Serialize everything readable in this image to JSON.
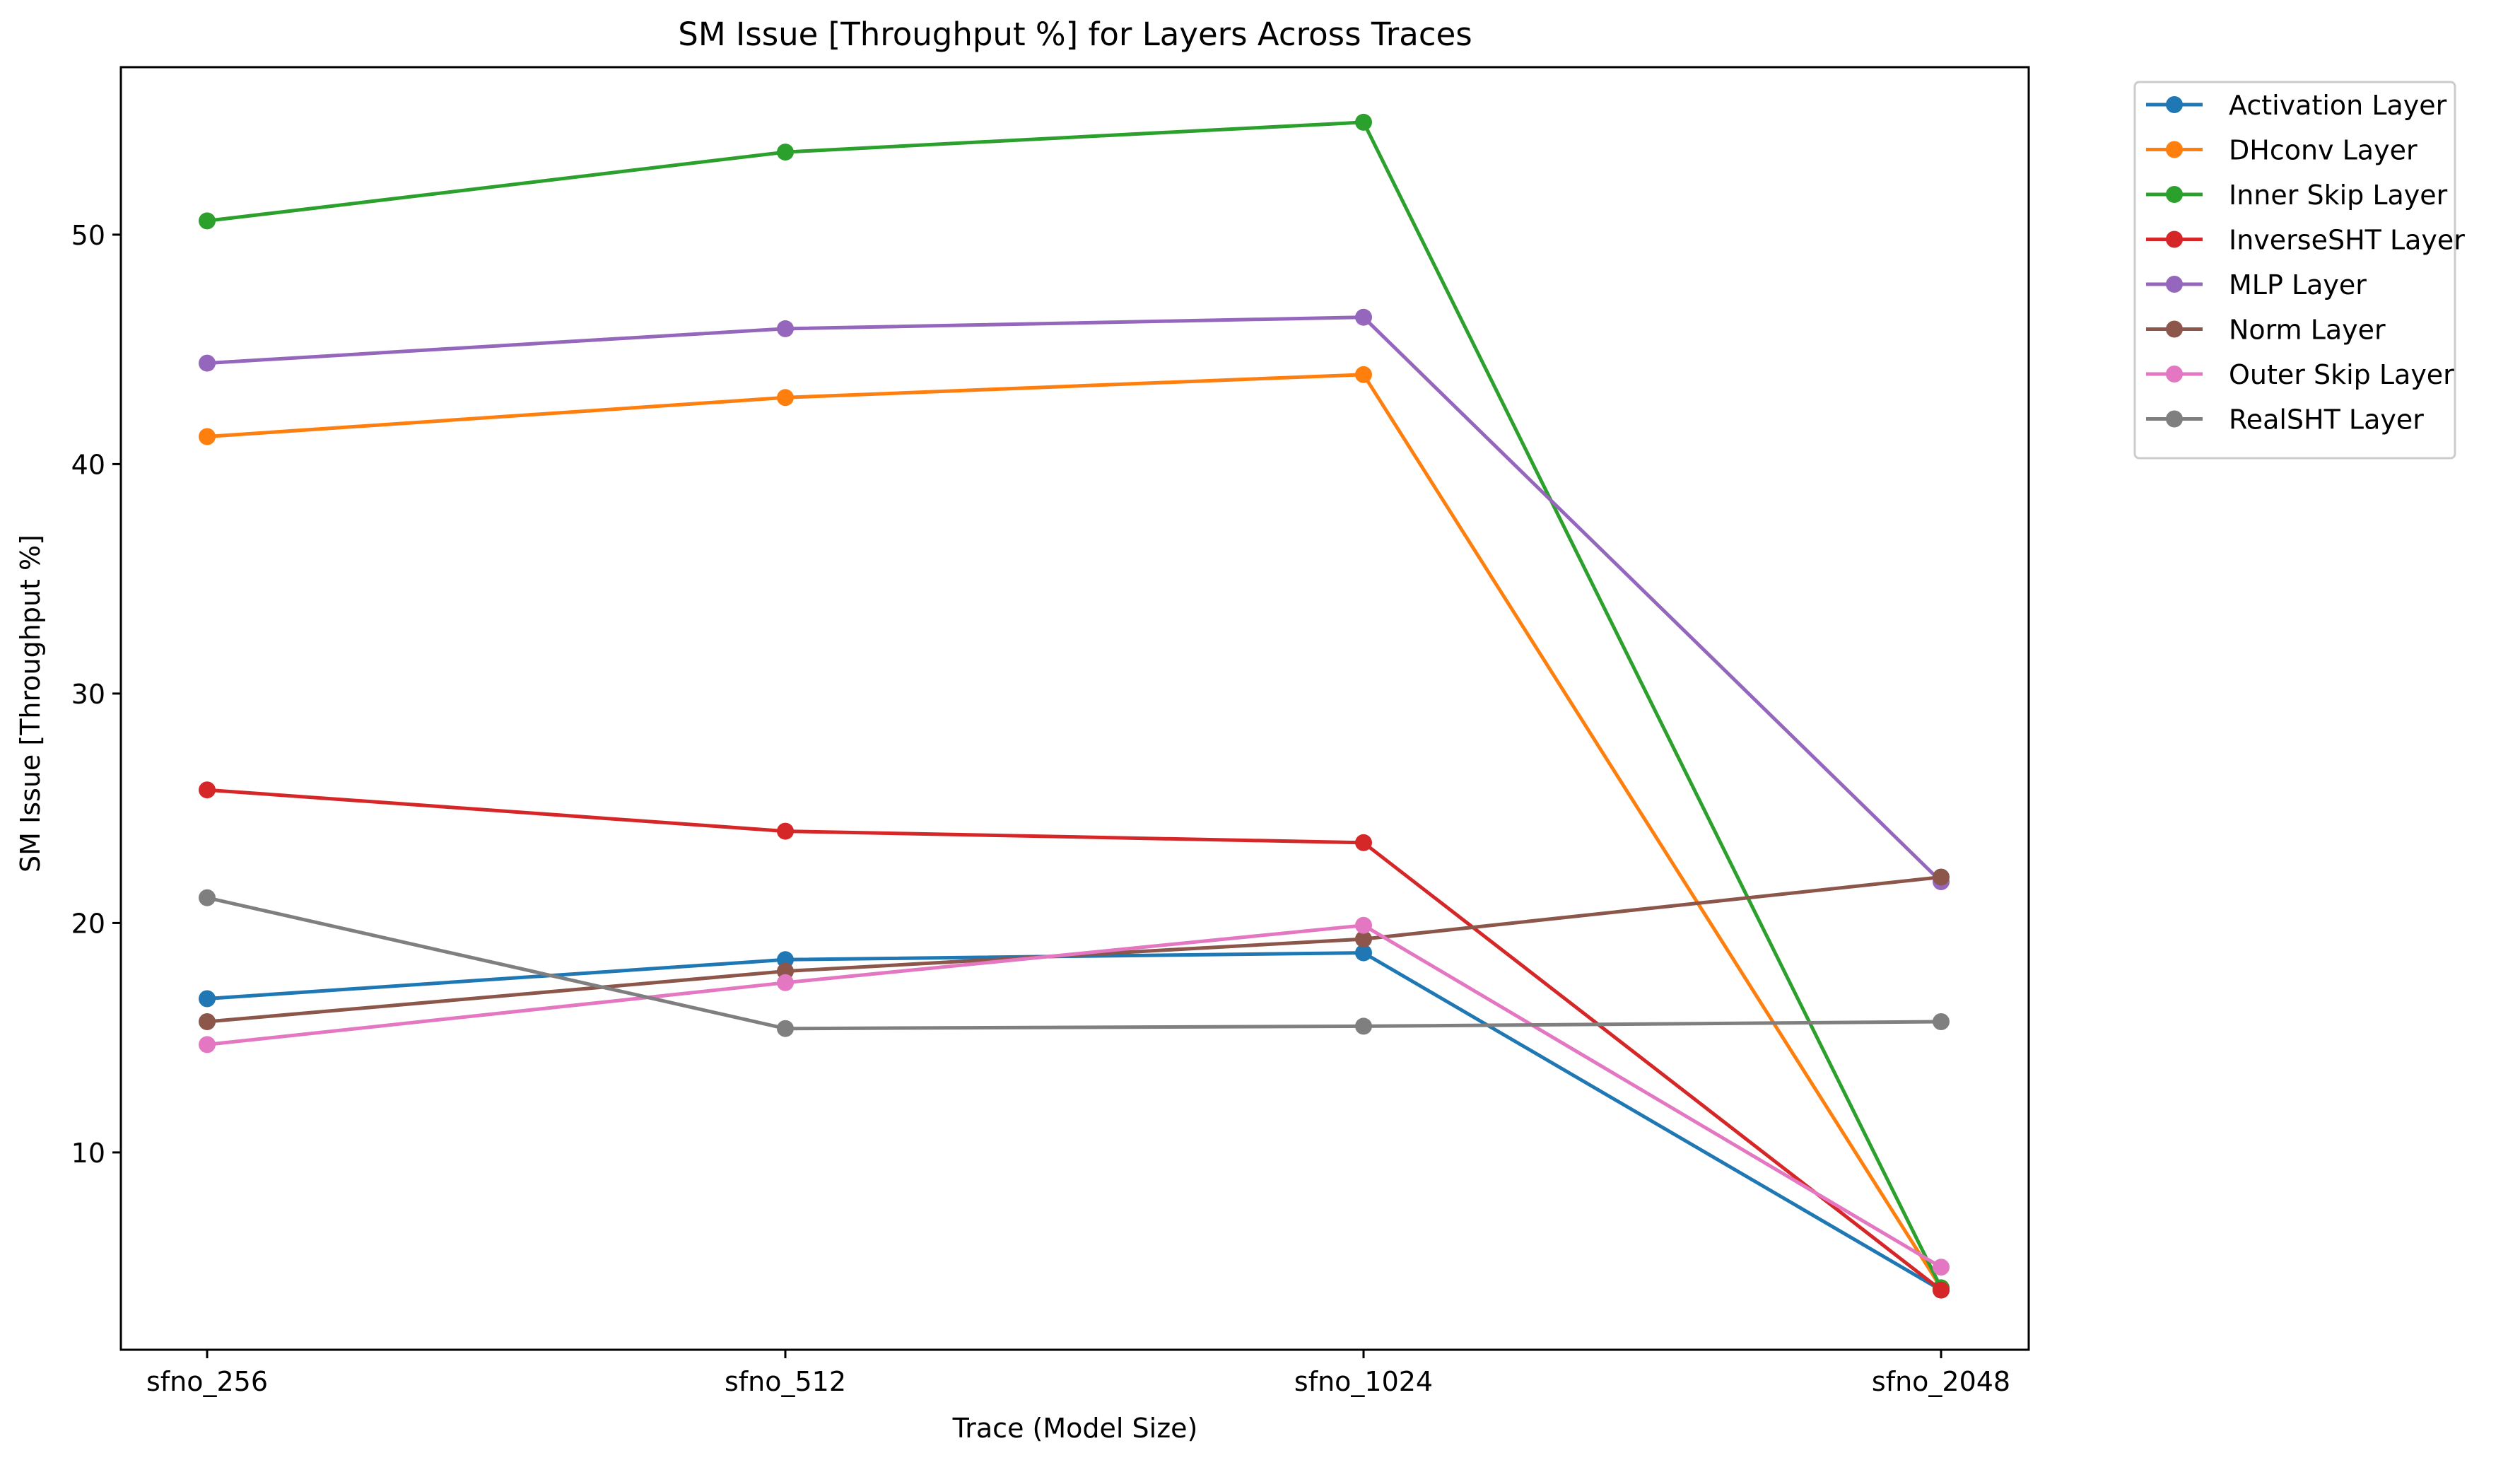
{
  "chart_data": {
    "type": "line",
    "title": "SM Issue [Throughput %] for Layers Across Traces",
    "xlabel": "Trace (Model Size)",
    "ylabel": "SM Issue [Throughput %]",
    "categories": [
      "sfno_256",
      "sfno_512",
      "sfno_1024",
      "sfno_2048"
    ],
    "ylim": [
      1.4,
      57.3
    ],
    "yticks": [
      10,
      20,
      30,
      40,
      50
    ],
    "grid": false,
    "legend_position": "outside-top-right",
    "series": [
      {
        "name": "Activation Layer",
        "color": "#1f77b4",
        "values": [
          16.7,
          18.4,
          18.7,
          4.0
        ]
      },
      {
        "name": "DHconv Layer",
        "color": "#ff7f0e",
        "values": [
          41.2,
          42.9,
          43.9,
          4.1
        ]
      },
      {
        "name": "Inner Skip Layer",
        "color": "#2ca02c",
        "values": [
          50.6,
          53.6,
          54.9,
          4.1
        ]
      },
      {
        "name": "InverseSHT Layer",
        "color": "#d62728",
        "values": [
          25.8,
          24.0,
          23.5,
          4.0
        ]
      },
      {
        "name": "MLP Layer",
        "color": "#9467bd",
        "values": [
          44.4,
          45.9,
          46.4,
          21.8
        ]
      },
      {
        "name": "Norm Layer",
        "color": "#8c564b",
        "values": [
          15.7,
          17.9,
          19.3,
          22.0
        ]
      },
      {
        "name": "Outer Skip Layer",
        "color": "#e377c2",
        "values": [
          14.7,
          17.4,
          19.9,
          5.0
        ]
      },
      {
        "name": "RealSHT Layer",
        "color": "#7f7f7f",
        "values": [
          21.1,
          15.4,
          15.5,
          15.7
        ]
      }
    ]
  }
}
